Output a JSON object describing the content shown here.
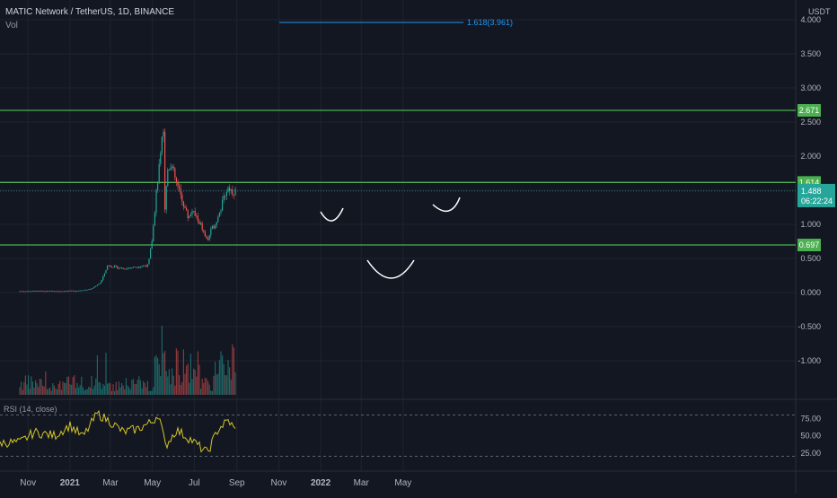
{
  "header": {
    "symbol_title": "MATIC Network / TetherUS, 1D, BINANCE",
    "volume_label": "Vol",
    "currency": "USDT"
  },
  "price_axis": {
    "ticks": [
      "4.000",
      "3.500",
      "3.000",
      "2.500",
      "2.000",
      "1.500",
      "1.000",
      "0.500",
      "0.000",
      "-0.500",
      "-1.000"
    ]
  },
  "levels": [
    {
      "value": 2.671,
      "label": "2.671",
      "color": "#4caf50"
    },
    {
      "value": 1.614,
      "label": "1.614",
      "color": "#4caf50"
    },
    {
      "value": 0.697,
      "label": "0.697",
      "color": "#4caf50"
    }
  ],
  "last_price": {
    "value": 1.488,
    "label": "1.488",
    "countdown": "06:22:24",
    "color": "#26a69a"
  },
  "fib": {
    "label": "1.618(3.961)",
    "value": 3.961,
    "color": "#2196f3"
  },
  "rsi": {
    "label": "RSI (14, close)",
    "ticks": [
      "75.00",
      "50.00",
      "25.00"
    ],
    "upper": 80,
    "lower": 20,
    "line_color": "#d4c629"
  },
  "time_axis": {
    "labels": [
      "Nov",
      "2021",
      "Mar",
      "May",
      "Jul",
      "Sep",
      "Nov",
      "2022",
      "Mar",
      "May"
    ]
  },
  "colors": {
    "background": "#131722",
    "up": "#26a69a",
    "down": "#ef5350",
    "grid": "#1f2330"
  },
  "chart_data": {
    "type": "candlestick",
    "title": "MATIC Network / TetherUS, 1D, BINANCE",
    "ylim": [
      -1.3,
      4.1
    ],
    "price_path": [
      [
        "2020-10-20",
        0.02
      ],
      [
        "2020-11-15",
        0.02
      ],
      [
        "2020-12-15",
        0.02
      ],
      [
        "2021-01-10",
        0.025
      ],
      [
        "2021-02-01",
        0.05
      ],
      [
        "2021-02-15",
        0.15
      ],
      [
        "2021-02-25",
        0.4
      ],
      [
        "2021-03-05",
        0.38
      ],
      [
        "2021-03-20",
        0.35
      ],
      [
        "2021-04-10",
        0.38
      ],
      [
        "2021-04-25",
        0.4
      ],
      [
        "2021-05-01",
        0.8
      ],
      [
        "2021-05-08",
        1.6
      ],
      [
        "2021-05-12",
        1.9
      ],
      [
        "2021-05-18",
        2.5
      ],
      [
        "2021-05-19",
        1.2
      ],
      [
        "2021-05-23",
        1.8
      ],
      [
        "2021-05-28",
        1.9
      ],
      [
        "2021-06-05",
        1.6
      ],
      [
        "2021-06-12",
        1.4
      ],
      [
        "2021-06-22",
        1.1
      ],
      [
        "2021-06-28",
        1.2
      ],
      [
        "2021-07-10",
        1.0
      ],
      [
        "2021-07-20",
        0.75
      ],
      [
        "2021-07-25",
        0.9
      ],
      [
        "2021-08-05",
        1.1
      ],
      [
        "2021-08-15",
        1.45
      ],
      [
        "2021-08-20",
        1.55
      ],
      [
        "2021-08-25",
        1.48
      ],
      [
        "2021-08-31",
        1.488
      ]
    ],
    "rsi_path": [
      [
        "2020-10-20",
        40
      ],
      [
        "2020-11-10",
        55
      ],
      [
        "2020-12-10",
        50
      ],
      [
        "2021-01-01",
        65
      ],
      [
        "2021-01-20",
        48
      ],
      [
        "2021-02-10",
        82
      ],
      [
        "2021-03-01",
        70
      ],
      [
        "2021-03-20",
        55
      ],
      [
        "2021-04-10",
        60
      ],
      [
        "2021-05-01",
        70
      ],
      [
        "2021-05-10",
        82
      ],
      [
        "2021-05-20",
        35
      ],
      [
        "2021-06-05",
        58
      ],
      [
        "2021-06-25",
        45
      ],
      [
        "2021-07-20",
        25
      ],
      [
        "2021-08-05",
        60
      ],
      [
        "2021-08-20",
        72
      ],
      [
        "2021-08-31",
        55
      ]
    ]
  }
}
